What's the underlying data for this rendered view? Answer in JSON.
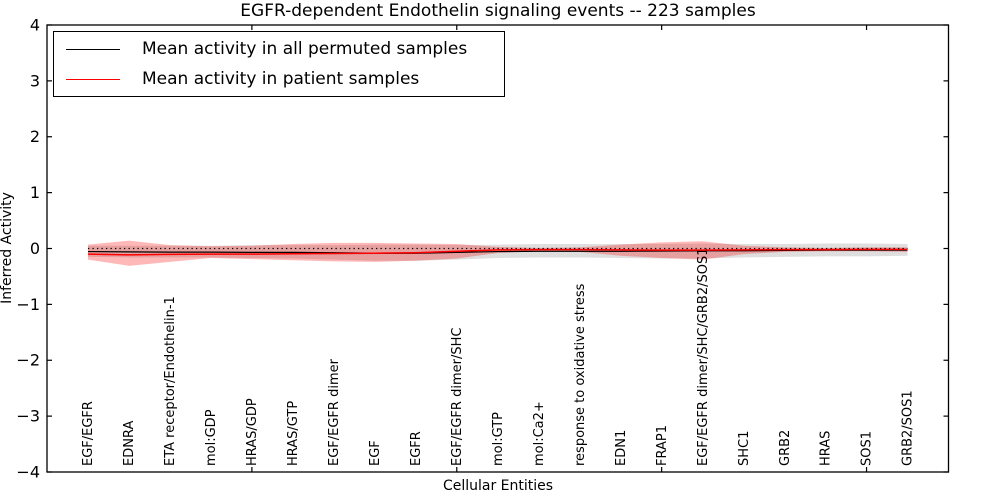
{
  "figure": {
    "title": "EGFR-dependent Endothelin signaling events -- 223 samples",
    "xlabel": "Cellular Entities",
    "ylabel": "Inferred Activity"
  },
  "legend": {
    "entries": [
      {
        "label": "Mean activity in all permuted samples",
        "color": "#000000"
      },
      {
        "label": "Mean activity in patient samples",
        "color": "#ff0000"
      }
    ]
  },
  "chart_data": {
    "type": "line",
    "title": "EGFR-dependent Endothelin signaling events -- 223 samples",
    "xlabel": "Cellular Entities",
    "ylabel": "Inferred Activity",
    "ylim": [
      -4,
      4
    ],
    "yticks": [
      4,
      3,
      2,
      1,
      0,
      -1,
      -2,
      -3,
      -4
    ],
    "x_axis_tick_positions": [
      5,
      10,
      15,
      20
    ],
    "grid": false,
    "legend_position": "upper left",
    "categories": [
      "EGF/EGFR",
      "EDNRA",
      "ETA receptor/Endothelin-1",
      "mol:GDP",
      "HRAS/GDP",
      "HRAS/GTP",
      "EGF/EGFR dimer",
      "EGF",
      "EGFR",
      "EGF/EGFR dimer/SHC",
      "mol:GTP",
      "mol:Ca2+",
      "response to oxidative stress",
      "EDN1",
      "FRAP1",
      "EGF/EGFR dimer/SHC/GRB2/SOS1",
      "SHC1",
      "GRB2",
      "HRAS",
      "SOS1",
      "GRB2/SOS1"
    ],
    "series": [
      {
        "name": "Mean activity in all permuted samples",
        "color": "#000000",
        "values": [
          -0.055,
          -0.06,
          -0.065,
          -0.065,
          -0.07,
          -0.07,
          -0.075,
          -0.085,
          -0.085,
          -0.07,
          -0.055,
          -0.05,
          -0.05,
          -0.05,
          -0.045,
          -0.04,
          -0.04,
          -0.035,
          -0.03,
          -0.03,
          -0.03
        ]
      },
      {
        "name": "Mean activity in patient samples",
        "color": "#ff0000",
        "values": [
          -0.1,
          -0.115,
          -0.105,
          -0.1,
          -0.1,
          -0.095,
          -0.09,
          -0.085,
          -0.075,
          -0.05,
          -0.025,
          -0.02,
          -0.02,
          -0.025,
          -0.03,
          -0.03,
          -0.025,
          -0.02,
          -0.02,
          -0.015,
          -0.015
        ]
      }
    ],
    "bands": [
      {
        "name": "permuted-samples-range",
        "color": "rgba(0,0,0,0.13)",
        "upper": [
          0.05,
          0.05,
          0.05,
          0.05,
          0.06,
          0.06,
          0.06,
          0.07,
          0.07,
          0.06,
          0.07,
          0.08,
          0.08,
          0.08,
          0.08,
          0.09,
          0.08,
          0.08,
          0.09,
          0.09,
          0.08
        ],
        "lower": [
          -0.15,
          -0.16,
          -0.16,
          -0.16,
          -0.17,
          -0.18,
          -0.2,
          -0.22,
          -0.22,
          -0.2,
          -0.17,
          -0.16,
          -0.16,
          -0.17,
          -0.18,
          -0.18,
          -0.16,
          -0.15,
          -0.14,
          -0.14,
          -0.13
        ]
      },
      {
        "name": "patient-samples-range",
        "color": "rgba(255,0,0,0.28)",
        "upper": [
          0.07,
          0.14,
          0.06,
          0.04,
          0.05,
          0.08,
          0.1,
          0.1,
          0.09,
          0.08,
          0.03,
          0.01,
          0.02,
          0.07,
          0.11,
          0.13,
          0.05,
          0.02,
          0.01,
          0.02,
          0.02
        ],
        "lower": [
          -0.2,
          -0.31,
          -0.24,
          -0.17,
          -0.19,
          -0.21,
          -0.23,
          -0.24,
          -0.22,
          -0.18,
          -0.08,
          -0.05,
          -0.06,
          -0.13,
          -0.17,
          -0.2,
          -0.1,
          -0.06,
          -0.05,
          -0.05,
          -0.06
        ]
      }
    ],
    "zero_line": {
      "y": 0,
      "style": "dotted",
      "color": "#000000"
    }
  }
}
